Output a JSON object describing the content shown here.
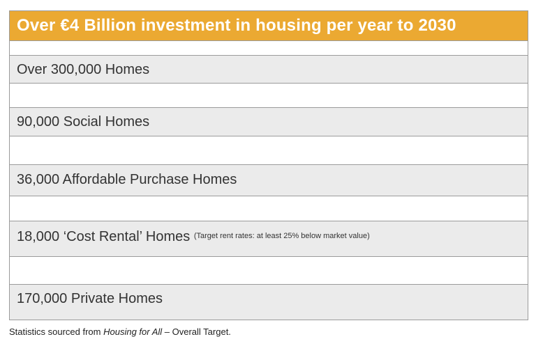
{
  "header": {
    "title": "Over €4 Billion investment in housing per year to 2030"
  },
  "rows": [
    {
      "label": "Over 300,000 Homes"
    },
    {
      "label": "90,000 Social Homes"
    },
    {
      "label": "36,000 Affordable Purchase Homes"
    },
    {
      "label": "18,000 ‘Cost Rental’ Homes",
      "note": "(Target rent rates: at least 25% below market value)"
    },
    {
      "label": "170,000 Private Homes"
    }
  ],
  "caption": {
    "prefix": "Statistics sourced from ",
    "source": "Housing for All",
    "suffix": " – Overall Target."
  }
}
